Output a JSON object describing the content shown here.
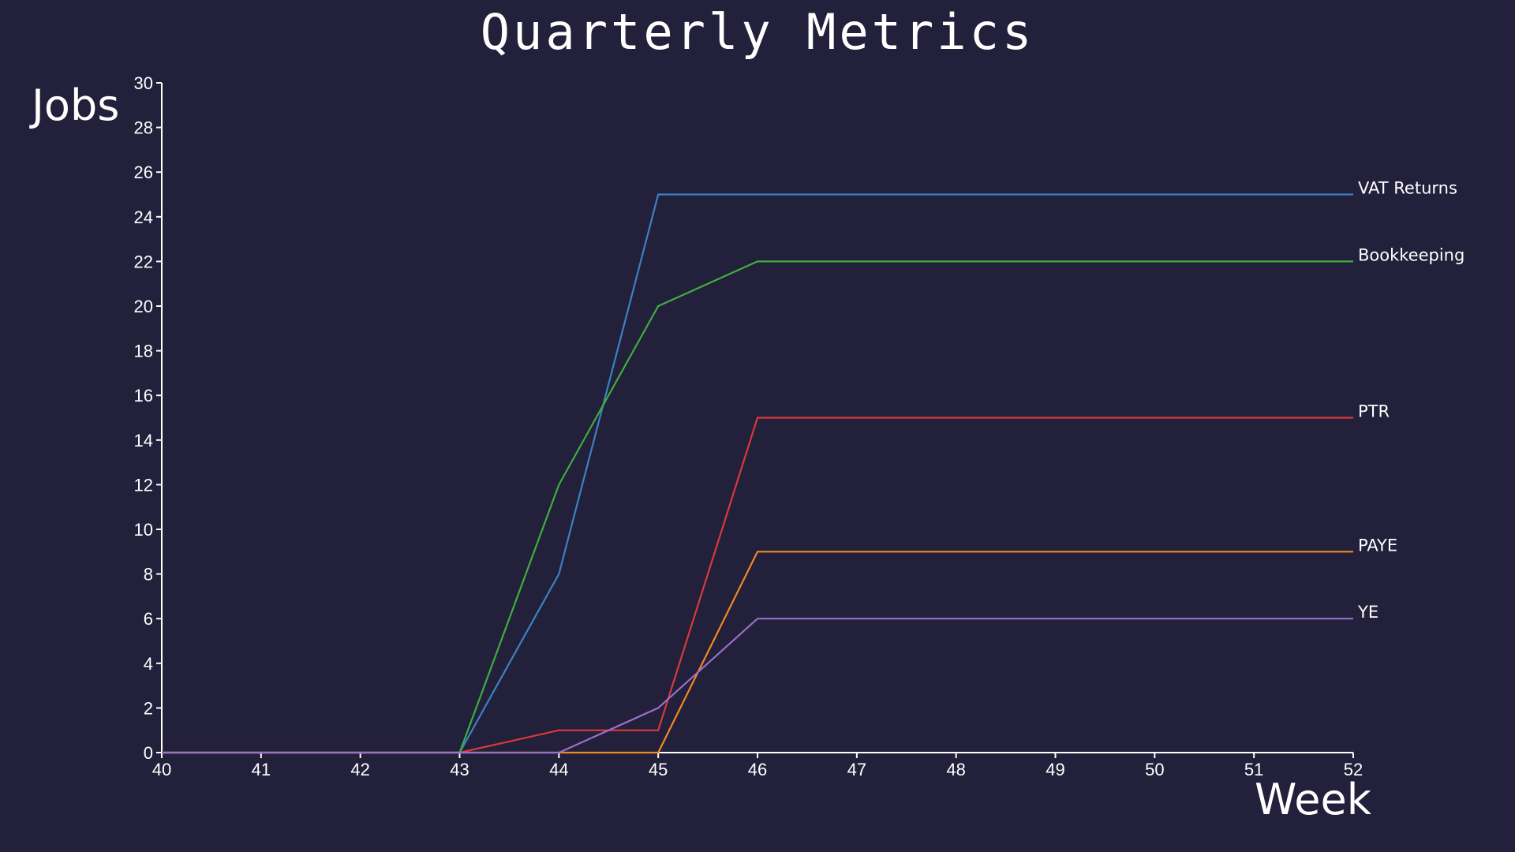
{
  "chart_data": {
    "type": "line",
    "title": "Quarterly Metrics",
    "xlabel": "Week",
    "ylabel": "Jobs",
    "x": [
      40,
      41,
      42,
      43,
      44,
      45,
      46,
      47,
      48,
      49,
      50,
      51,
      52
    ],
    "xlim": [
      40,
      52
    ],
    "ylim": [
      0,
      30
    ],
    "x_ticks": [
      "40",
      "41",
      "42",
      "43",
      "44",
      "45",
      "46",
      "47",
      "48",
      "49",
      "50",
      "51",
      "52"
    ],
    "y_ticks": [
      "0",
      "2",
      "4",
      "6",
      "8",
      "10",
      "12",
      "14",
      "16",
      "18",
      "20",
      "22",
      "24",
      "26",
      "28",
      "30"
    ],
    "grid": false,
    "legend": "inline-right",
    "background_color": "#22203a",
    "series": [
      {
        "name": "VAT Returns",
        "color": "#3b82c4",
        "values": [
          0,
          0,
          0,
          0,
          8,
          25,
          25,
          25,
          25,
          25,
          25,
          25,
          25
        ]
      },
      {
        "name": "Bookkeeping",
        "color": "#3fae3f",
        "values": [
          0,
          0,
          0,
          0,
          12,
          20,
          22,
          22,
          22,
          22,
          22,
          22,
          22
        ]
      },
      {
        "name": "PTR",
        "color": "#d93a3a",
        "values": [
          0,
          0,
          0,
          0,
          1,
          1,
          15,
          15,
          15,
          15,
          15,
          15,
          15
        ]
      },
      {
        "name": "PAYE",
        "color": "#f08a24",
        "values": [
          0,
          0,
          0,
          0,
          0,
          0,
          9,
          9,
          9,
          9,
          9,
          9,
          9
        ]
      },
      {
        "name": "YE",
        "color": "#9a6fc9",
        "values": [
          0,
          0,
          0,
          0,
          0,
          2,
          6,
          6,
          6,
          6,
          6,
          6,
          6
        ]
      }
    ]
  }
}
